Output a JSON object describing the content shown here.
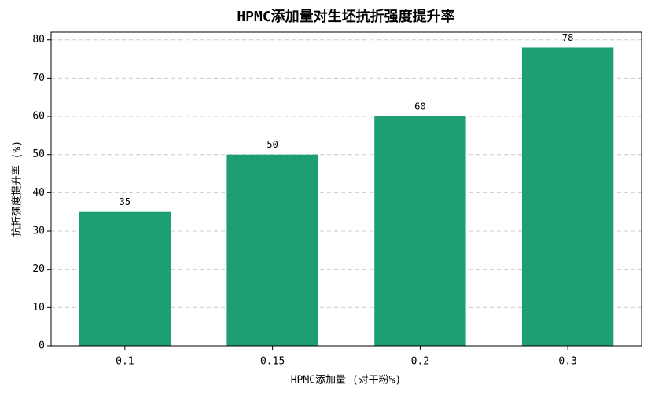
{
  "chart_data": {
    "type": "bar",
    "title": "HPMC添加量对生坯抗折强度提升率",
    "x_label": "HPMC添加量 (对干粉%)",
    "y_label": "抗折强度提升率 (%)",
    "categories": [
      "0.1",
      "0.15",
      "0.2",
      "0.3"
    ],
    "values": [
      35,
      50,
      60,
      78
    ],
    "color": "#1e9e75",
    "ylim": [
      0,
      82
    ],
    "yticks": [
      0,
      10,
      20,
      30,
      40,
      50,
      60,
      70,
      80
    ],
    "grid": true
  }
}
